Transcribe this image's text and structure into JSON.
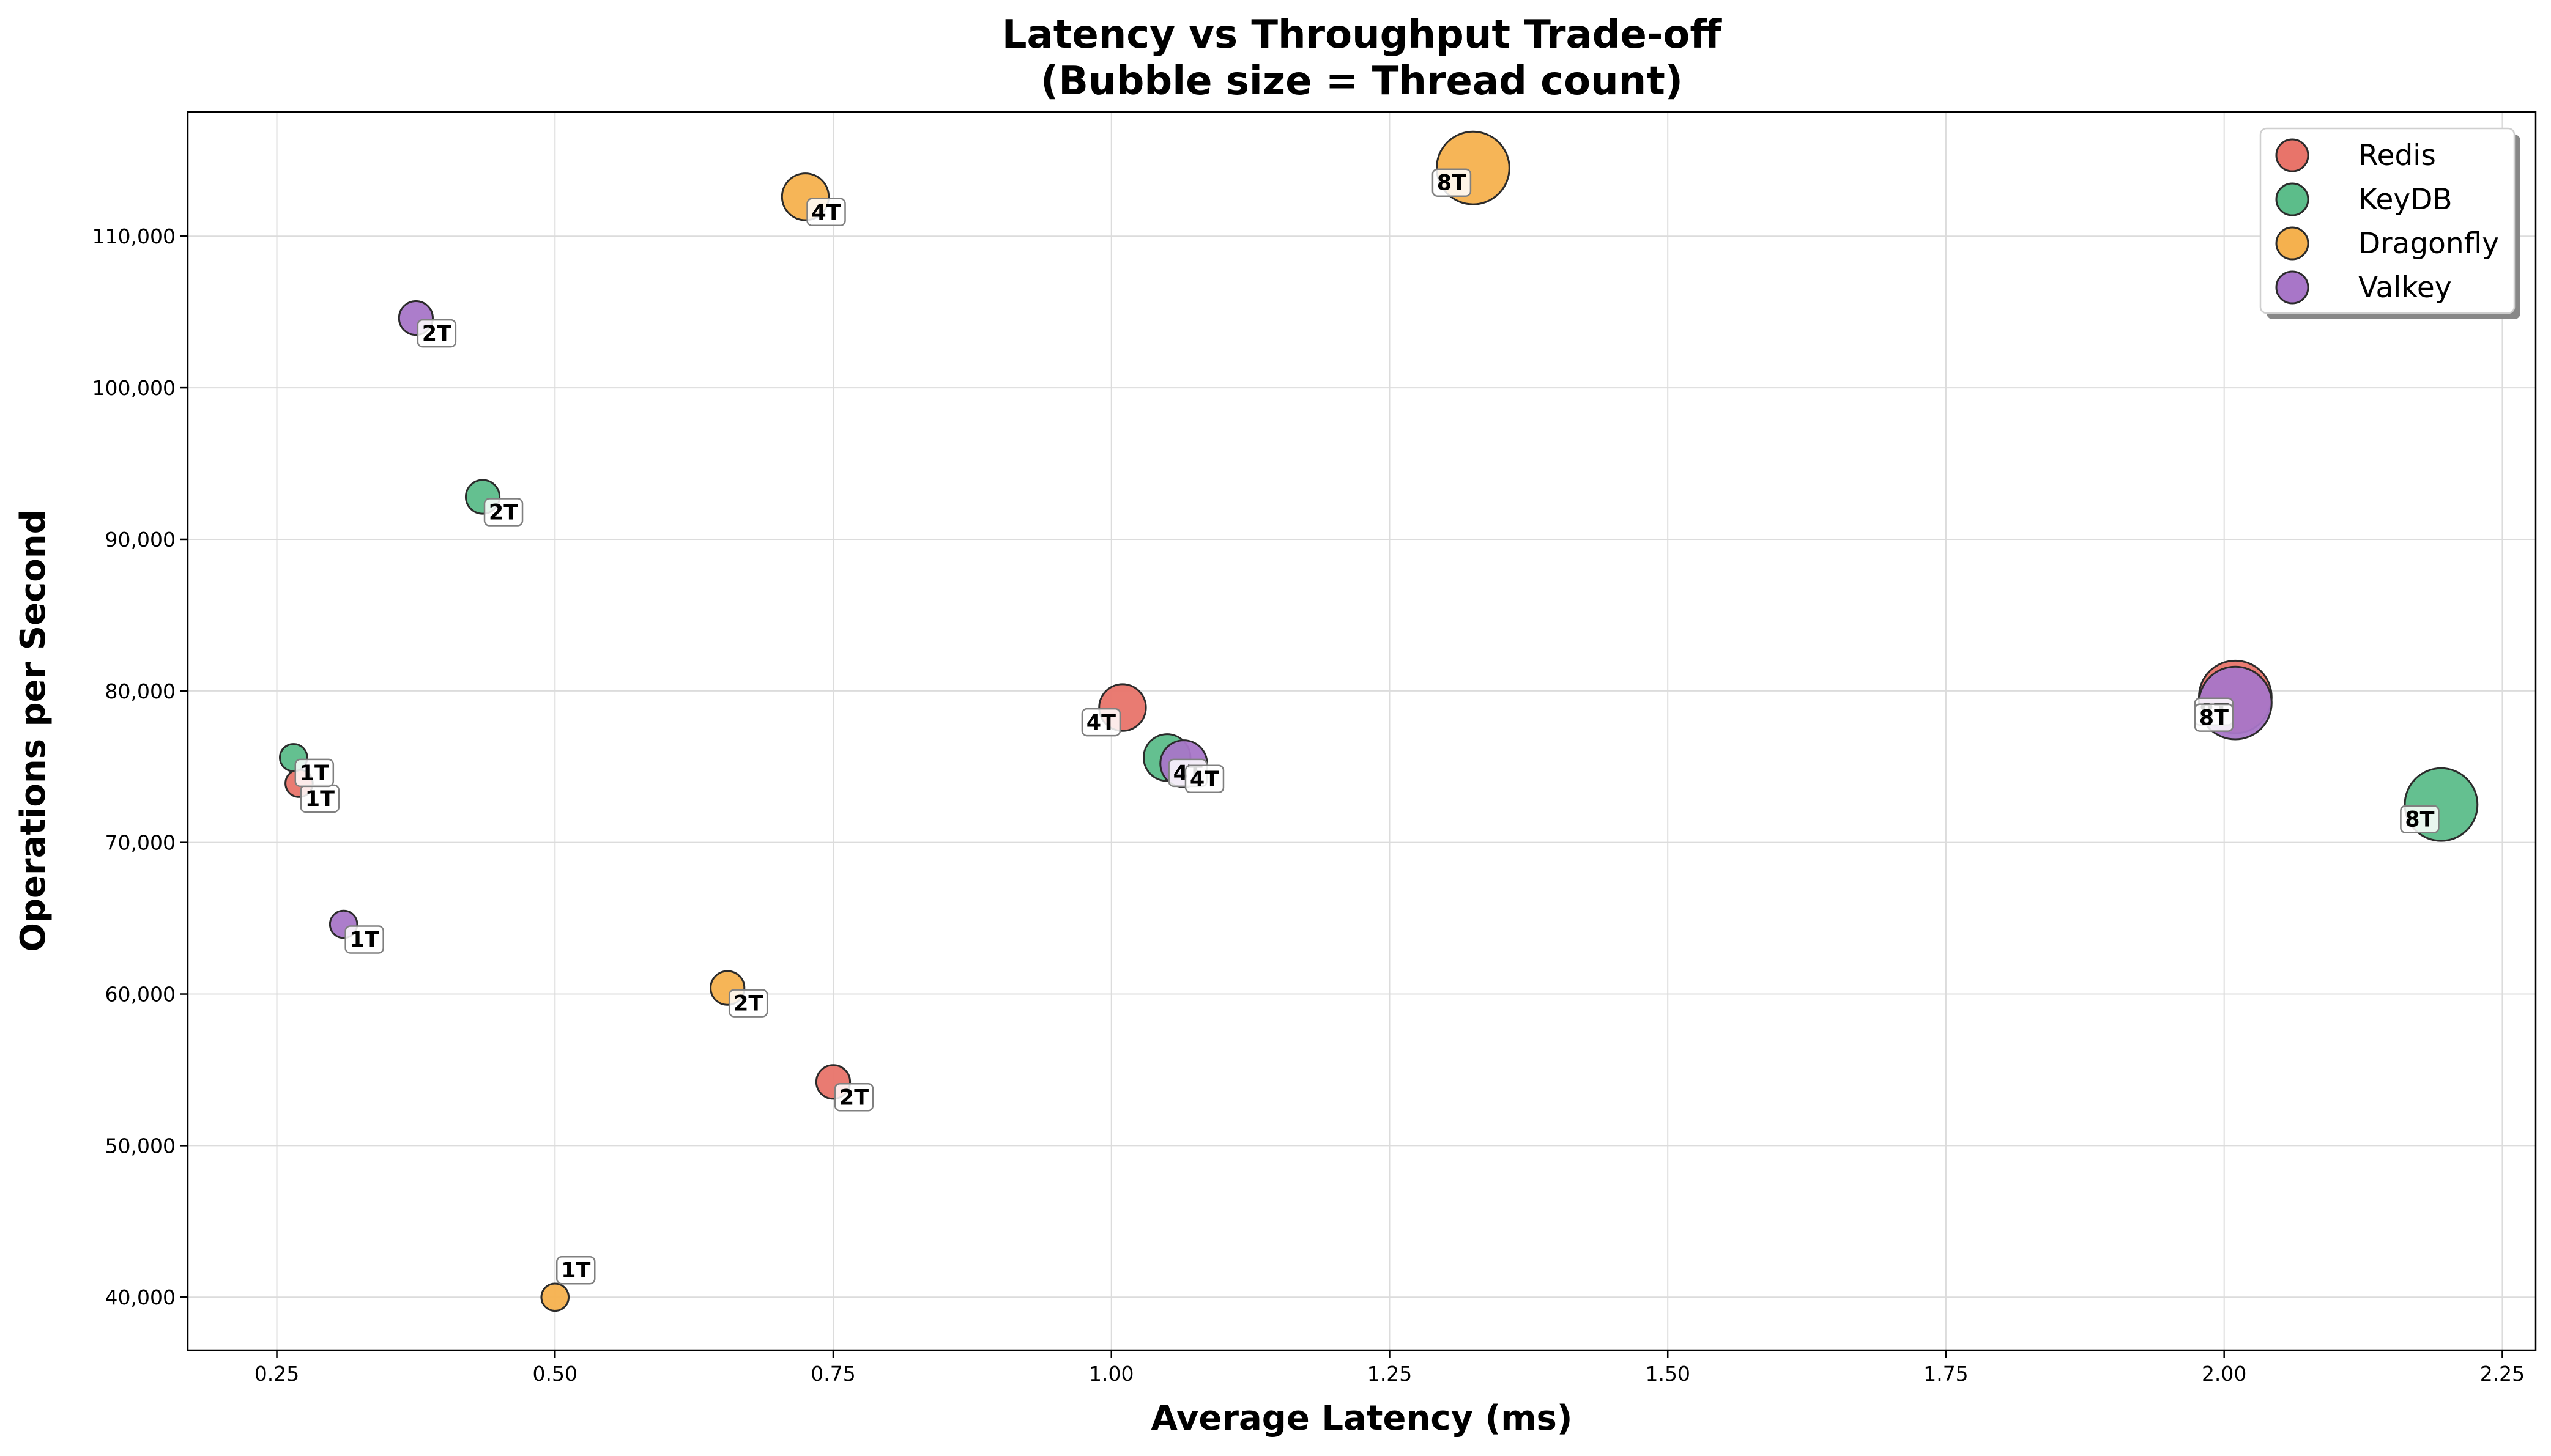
{
  "chart_data": {
    "type": "scatter",
    "title": "Latency vs Throughput Trade-off",
    "subtitle": "(Bubble size = Thread count)",
    "xlabel": "Average Latency (ms)",
    "ylabel": "Operations per Second",
    "xlim": [
      0.17,
      2.28
    ],
    "ylim": [
      36500,
      118200
    ],
    "x_ticks": [
      0.25,
      0.5,
      0.75,
      1.0,
      1.25,
      1.5,
      1.75,
      2.0,
      2.25
    ],
    "x_tick_labels": [
      "0.25",
      "0.50",
      "0.75",
      "1.00",
      "1.25",
      "1.50",
      "1.75",
      "2.00",
      "2.25"
    ],
    "y_ticks": [
      40000,
      50000,
      60000,
      70000,
      80000,
      90000,
      100000,
      110000
    ],
    "y_tick_labels": [
      "40,000",
      "50,000",
      "60,000",
      "70,000",
      "80,000",
      "90,000",
      "100,000",
      "110,000"
    ],
    "grid": true,
    "legend_position": "top-right",
    "series": [
      {
        "name": "Redis",
        "color": "#e8746a",
        "points": [
          {
            "x": 0.27,
            "y": 73900,
            "threads": 1,
            "label": "1T"
          },
          {
            "x": 0.75,
            "y": 54200,
            "threads": 2,
            "label": "2T"
          },
          {
            "x": 1.01,
            "y": 78900,
            "threads": 4,
            "label": "4T"
          },
          {
            "x": 2.01,
            "y": 79600,
            "threads": 8,
            "label": "8T"
          }
        ]
      },
      {
        "name": "KeyDB",
        "color": "#5cbd8a",
        "points": [
          {
            "x": 0.265,
            "y": 75600,
            "threads": 1,
            "label": "1T"
          },
          {
            "x": 0.435,
            "y": 92800,
            "threads": 2,
            "label": "2T"
          },
          {
            "x": 1.05,
            "y": 75600,
            "threads": 4,
            "label": "4T"
          },
          {
            "x": 2.195,
            "y": 72500,
            "threads": 8,
            "label": "8T"
          }
        ]
      },
      {
        "name": "Dragonfly",
        "color": "#f5b14e",
        "points": [
          {
            "x": 0.5,
            "y": 40000,
            "threads": 1,
            "label": "1T"
          },
          {
            "x": 0.655,
            "y": 60400,
            "threads": 2,
            "label": "2T"
          },
          {
            "x": 0.725,
            "y": 112600,
            "threads": 4,
            "label": "4T"
          },
          {
            "x": 1.325,
            "y": 114500,
            "threads": 8,
            "label": "8T"
          }
        ]
      },
      {
        "name": "Valkey",
        "color": "#a876c8",
        "points": [
          {
            "x": 0.31,
            "y": 64600,
            "threads": 1,
            "label": "1T"
          },
          {
            "x": 0.375,
            "y": 104600,
            "threads": 2,
            "label": "2T"
          },
          {
            "x": 1.065,
            "y": 75200,
            "threads": 4,
            "label": "4T"
          },
          {
            "x": 2.01,
            "y": 79200,
            "threads": 8,
            "label": "8T"
          }
        ]
      }
    ]
  }
}
